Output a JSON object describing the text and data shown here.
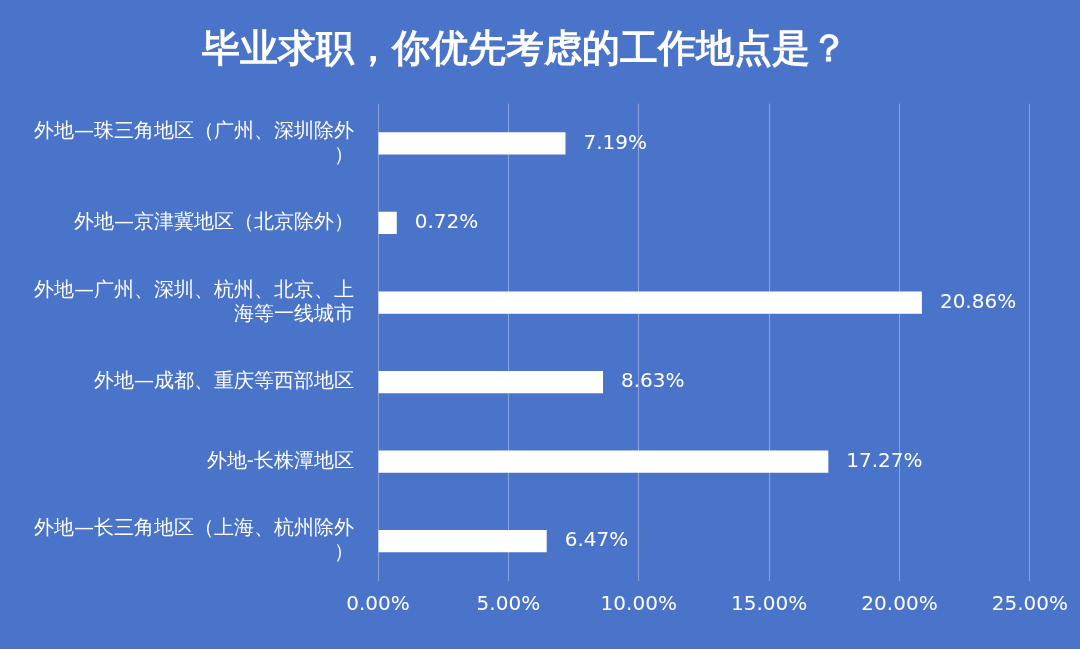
{
  "chart_data": {
    "type": "bar",
    "orientation": "horizontal",
    "title": "毕业求职，你优先考虑的工作地点是？",
    "categories": [
      "外地—珠三角地区（广州、深圳除外）",
      "外地—京津冀地区（北京除外）",
      "外地—广州、深圳、杭州、北京、上海等一线城市",
      "外地—成都、重庆等西部地区",
      "外地-长株潭地区",
      "外地—长三角地区（上海、杭州除外）"
    ],
    "values": [
      7.19,
      0.72,
      20.86,
      8.63,
      17.27,
      6.47
    ],
    "value_labels": [
      "7.19%",
      "0.72%",
      "20.86%",
      "8.63%",
      "17.27%",
      "6.47%"
    ],
    "color": "#ffffff",
    "xlim": [
      0,
      25
    ],
    "xticks": [
      {
        "value": 0,
        "label": "0.00%"
      },
      {
        "value": 5,
        "label": "5.00%"
      },
      {
        "value": 10,
        "label": "10.00%"
      },
      {
        "value": 15,
        "label": "15.00%"
      },
      {
        "value": 20,
        "label": "20.00%"
      },
      {
        "value": 25,
        "label": "25.00%"
      }
    ],
    "grid": "x",
    "legend": false
  }
}
